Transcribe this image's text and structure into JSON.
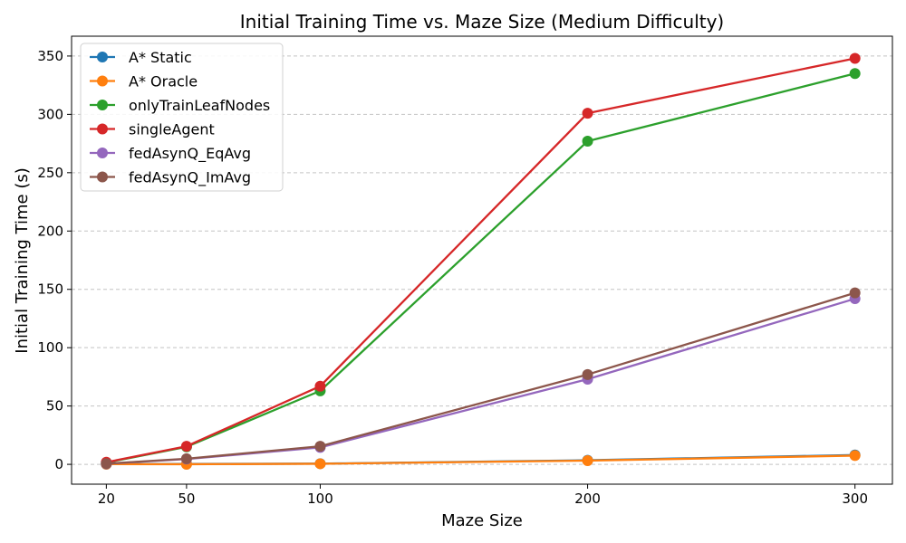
{
  "chart_data": {
    "type": "line",
    "title": "Initial Training Time vs. Maze Size (Medium Difficulty)",
    "xlabel": "Maze Size",
    "ylabel": "Initial Training Time (s)",
    "x": [
      20,
      50,
      100,
      200,
      300
    ],
    "xticks": [
      20,
      50,
      100,
      200,
      300
    ],
    "yticks": [
      0,
      50,
      100,
      150,
      200,
      250,
      300,
      350
    ],
    "xlim": [
      7,
      314
    ],
    "ylim": [
      -17,
      367
    ],
    "grid": "y-dashed",
    "legend_position": "top-left",
    "series": [
      {
        "name": "A* Static",
        "color": "#1f77b4",
        "values": [
          0.2,
          0.3,
          0.6,
          3.5,
          8
        ]
      },
      {
        "name": "A* Oracle",
        "color": "#ff7f0e",
        "values": [
          0.2,
          0.1,
          0.5,
          3.2,
          7.5
        ]
      },
      {
        "name": "onlyTrainLeafNodes",
        "color": "#2ca02c",
        "values": [
          1.5,
          15,
          63,
          277,
          335
        ]
      },
      {
        "name": "singleAgent",
        "color": "#d62728",
        "values": [
          1.8,
          15.5,
          67,
          301,
          348
        ]
      },
      {
        "name": "fedAsynQ_EqAvg",
        "color": "#9467bd",
        "values": [
          0.5,
          4.5,
          14.5,
          73,
          142
        ]
      },
      {
        "name": "fedAsynQ_ImAvg",
        "color": "#8c564b",
        "values": [
          0.6,
          4.8,
          15.5,
          77,
          147
        ]
      }
    ]
  }
}
